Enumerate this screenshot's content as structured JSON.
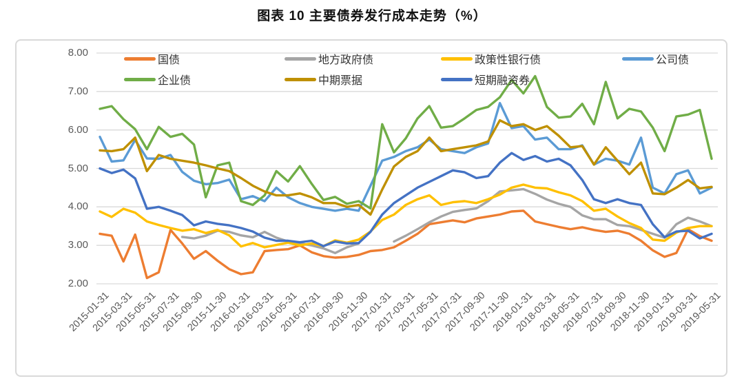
{
  "page": {
    "title": "图表 10 主要债券发行成本走势（%）"
  },
  "chart_data": {
    "type": "line",
    "title": "图表 10 主要债券发行成本走势（%）",
    "x_frequency": "monthly",
    "x_range": [
      "2015-01-31",
      "2019-05-31"
    ],
    "x_tick_labels": [
      "2015-01-31",
      "2015-03-31",
      "2015-05-31",
      "2015-07-31",
      "2015-09-30",
      "2015-11-30",
      "2016-01-31",
      "2016-03-31",
      "2016-05-31",
      "2016-07-31",
      "2016-09-30",
      "2016-11-30",
      "2017-01-31",
      "2017-03-31",
      "2017-05-31",
      "2017-07-31",
      "2017-09-30",
      "2017-11-30",
      "2018-01-31",
      "2018-03-31",
      "2018-05-31",
      "2018-07-31",
      "2018-09-30",
      "2018-11-30",
      "2019-01-31",
      "2019-03-31",
      "2019-05-31"
    ],
    "y_ticks": [
      "8.00",
      "7.00",
      "6.00",
      "5.00",
      "4.00",
      "3.00",
      "2.00"
    ],
    "ylim": [
      2.0,
      8.0
    ],
    "grid": "horizontal",
    "grid_color": "#d9d9d9",
    "legend_position": "top-inside",
    "series": [
      {
        "name": "国债",
        "color": "#ED7D31",
        "values": [
          3.3,
          3.25,
          2.58,
          3.28,
          2.15,
          2.3,
          3.4,
          3.05,
          2.65,
          2.85,
          2.6,
          2.38,
          2.25,
          2.3,
          2.85,
          2.88,
          2.9,
          3.0,
          2.82,
          2.72,
          2.68,
          2.7,
          2.75,
          2.85,
          2.88,
          2.95,
          3.12,
          3.3,
          3.55,
          3.6,
          3.65,
          3.6,
          3.7,
          3.75,
          3.8,
          3.88,
          3.9,
          3.62,
          3.55,
          3.48,
          3.42,
          3.47,
          3.4,
          3.35,
          3.38,
          3.3,
          3.12,
          2.87,
          2.7,
          2.8,
          3.42,
          3.24,
          3.12
        ]
      },
      {
        "name": "地方政府债",
        "color": "#A5A5A5",
        "values": [
          null,
          null,
          null,
          null,
          null,
          null,
          null,
          3.22,
          3.18,
          3.25,
          3.38,
          3.35,
          3.26,
          3.21,
          3.35,
          3.2,
          3.1,
          3.05,
          3.0,
          2.92,
          2.8,
          2.95,
          3.05,
          null,
          null,
          3.1,
          3.25,
          3.42,
          3.6,
          3.75,
          3.87,
          3.92,
          3.96,
          4.15,
          4.4,
          4.43,
          4.46,
          4.34,
          4.19,
          4.08,
          4.0,
          3.78,
          3.68,
          3.68,
          3.53,
          3.5,
          3.4,
          3.3,
          3.2,
          3.55,
          3.72,
          3.62,
          3.5
        ]
      },
      {
        "name": "政策性银行债",
        "color": "#FFC000",
        "values": [
          3.88,
          3.74,
          3.95,
          3.85,
          3.62,
          3.53,
          3.45,
          3.38,
          3.42,
          3.32,
          3.4,
          3.26,
          2.97,
          3.06,
          2.95,
          3.01,
          3.07,
          3.0,
          3.05,
          2.98,
          3.13,
          3.07,
          3.15,
          3.36,
          3.66,
          3.8,
          4.05,
          4.2,
          4.3,
          4.05,
          4.12,
          4.15,
          4.1,
          4.2,
          4.32,
          4.5,
          4.58,
          4.5,
          4.48,
          4.38,
          4.3,
          4.15,
          3.9,
          3.95,
          3.75,
          3.58,
          3.45,
          3.15,
          3.12,
          3.33,
          3.45,
          3.5,
          3.5
        ]
      },
      {
        "name": "公司债",
        "color": "#5B9BD5",
        "values": [
          5.82,
          5.18,
          5.21,
          5.74,
          5.26,
          5.25,
          5.35,
          4.91,
          4.68,
          4.59,
          4.62,
          4.71,
          4.2,
          4.28,
          4.15,
          4.5,
          4.25,
          4.1,
          4.0,
          3.95,
          3.9,
          3.95,
          3.9,
          4.55,
          5.2,
          5.3,
          5.45,
          5.55,
          5.75,
          5.5,
          5.45,
          5.4,
          5.55,
          5.65,
          6.7,
          6.05,
          6.1,
          5.75,
          5.8,
          5.5,
          5.5,
          5.6,
          5.1,
          5.25,
          5.2,
          5.1,
          5.8,
          4.5,
          4.35,
          4.85,
          4.95,
          4.35,
          4.5
        ]
      },
      {
        "name": "企业债",
        "color": "#70AD47",
        "values": [
          6.55,
          6.62,
          6.28,
          6.02,
          5.5,
          6.08,
          5.82,
          5.9,
          5.62,
          4.25,
          5.08,
          5.15,
          4.15,
          4.05,
          4.3,
          4.93,
          4.66,
          5.06,
          4.6,
          4.18,
          4.26,
          4.08,
          4.15,
          3.96,
          6.15,
          5.42,
          5.78,
          6.3,
          6.62,
          6.06,
          6.1,
          6.3,
          6.52,
          6.6,
          6.85,
          7.3,
          6.95,
          7.4,
          6.6,
          6.32,
          6.35,
          6.68,
          6.15,
          7.25,
          6.3,
          6.55,
          6.48,
          6.06,
          5.45,
          6.35,
          6.4,
          6.52,
          5.25
        ]
      },
      {
        "name": "中期票据",
        "color": "#BF9000",
        "values": [
          5.47,
          5.45,
          5.5,
          5.8,
          4.93,
          5.35,
          5.25,
          5.2,
          5.15,
          5.08,
          5.0,
          4.93,
          4.75,
          4.55,
          4.4,
          4.3,
          4.3,
          4.35,
          4.25,
          4.1,
          4.1,
          4.0,
          4.05,
          3.8,
          4.45,
          5.05,
          5.3,
          5.45,
          5.8,
          5.45,
          5.5,
          5.55,
          5.6,
          5.7,
          6.25,
          6.1,
          6.15,
          6.0,
          6.1,
          5.85,
          5.55,
          5.58,
          5.1,
          5.55,
          5.2,
          4.85,
          5.15,
          4.35,
          4.33,
          4.5,
          4.7,
          4.48,
          4.52
        ]
      },
      {
        "name": "短期融资券",
        "color": "#4472C4",
        "values": [
          5.0,
          4.88,
          4.97,
          4.74,
          3.95,
          4.0,
          3.9,
          3.79,
          3.52,
          3.62,
          3.56,
          3.52,
          3.45,
          3.36,
          3.2,
          3.12,
          3.12,
          3.08,
          3.12,
          2.98,
          3.1,
          3.05,
          3.06,
          3.35,
          3.8,
          4.1,
          4.3,
          4.5,
          4.65,
          4.8,
          4.95,
          4.9,
          4.75,
          4.8,
          5.15,
          5.4,
          5.22,
          5.32,
          5.18,
          5.25,
          5.08,
          4.7,
          4.2,
          4.1,
          4.2,
          4.1,
          4.05,
          3.55,
          3.21,
          3.36,
          3.38,
          3.18,
          3.3
        ]
      }
    ]
  }
}
